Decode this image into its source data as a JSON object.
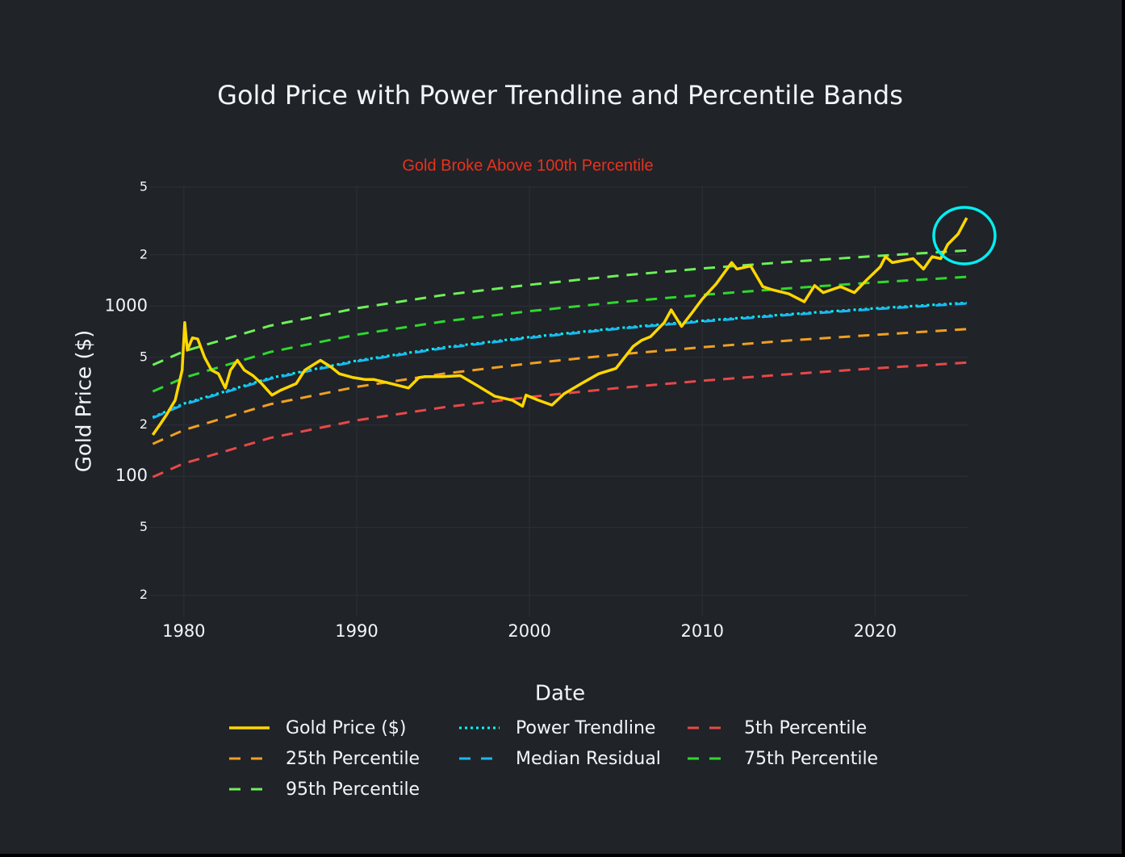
{
  "chart_data": {
    "type": "line",
    "title": "Gold Price with Power Trendline and Percentile Bands",
    "annotation": "Gold Broke Above 100th Percentile",
    "xlabel": "Date",
    "ylabel": "Gold Price ($)",
    "log_y": true,
    "grid": true,
    "xlim": [
      1978,
      2025.4
    ],
    "xticks": [
      1980,
      1990,
      2000,
      2010,
      2020
    ],
    "ylim": [
      15,
      5100
    ],
    "yticks": [
      {
        "value": 5000,
        "label": "5"
      },
      {
        "value": 2000,
        "label": "2"
      },
      1000,
      {
        "value": 500,
        "label": "5"
      },
      {
        "value": 200,
        "label": "2"
      },
      100,
      {
        "value": 50,
        "label": "5"
      },
      {
        "value": 20,
        "label": "2"
      }
    ],
    "series": [
      {
        "name": "Gold Price ($)",
        "color": "#ffd700",
        "dash": "solid",
        "x": [
          1978.2,
          1978.6,
          1979,
          1979.5,
          1979.9,
          1980.05,
          1980.2,
          1980.5,
          1980.8,
          1981.2,
          1981.6,
          1982.0,
          1982.4,
          1982.7,
          1983.1,
          1983.5,
          1984,
          1984.5,
          1985.1,
          1985.6,
          1986.5,
          1987,
          1987.9,
          1988.5,
          1989,
          1989.8,
          1990.5,
          1991,
          1992,
          1993,
          1993.6,
          1994,
          1995,
          1996,
          1997,
          1998,
          1999,
          1999.6,
          1999.8,
          2000.5,
          2001.3,
          2002,
          2003,
          2004,
          2005,
          2006,
          2006.5,
          2007,
          2007.8,
          2008.2,
          2008.8,
          2009.5,
          2010,
          2010.8,
          2011.7,
          2012,
          2012.8,
          2013.5,
          2014,
          2015,
          2015.9,
          2016.5,
          2017,
          2018,
          2018.8,
          2019.5,
          2020.3,
          2020.6,
          2021,
          2022.2,
          2022.8,
          2023.3,
          2023.8,
          2024.2,
          2024.8,
          2025.3
        ],
        "values": [
          175,
          200,
          230,
          280,
          420,
          800,
          550,
          650,
          640,
          500,
          420,
          400,
          330,
          420,
          480,
          420,
          390,
          350,
          300,
          320,
          350,
          420,
          480,
          440,
          400,
          380,
          370,
          370,
          350,
          330,
          380,
          385,
          385,
          390,
          340,
          295,
          280,
          258,
          300,
          280,
          262,
          305,
          350,
          400,
          430,
          580,
          630,
          660,
          800,
          950,
          760,
          940,
          1100,
          1350,
          1800,
          1650,
          1720,
          1300,
          1250,
          1180,
          1060,
          1320,
          1200,
          1300,
          1200,
          1420,
          1700,
          1950,
          1800,
          1900,
          1650,
          1950,
          1900,
          2300,
          2650,
          3300
        ]
      },
      {
        "name": "Power Trendline",
        "color": "#00ffff",
        "dash": "dot",
        "x": [
          1978.2,
          1980,
          1985,
          1990,
          1995,
          2000,
          2005,
          2010,
          2015,
          2020,
          2025.3
        ],
        "values": [
          222,
          267,
          378,
          478,
          571,
          657,
          740,
          819,
          895,
          969,
          1045
        ]
      },
      {
        "name": "5th Percentile",
        "color": "#e84848",
        "dash": "dash",
        "x": [
          1978.2,
          1980,
          1985,
          1990,
          1995,
          2000,
          2005,
          2010,
          2015,
          2020,
          2025.3
        ],
        "values": [
          99,
          119,
          168,
          213,
          254,
          292,
          329,
          364,
          398,
          431,
          465
        ]
      },
      {
        "name": "25th Percentile",
        "color": "#f0a020",
        "dash": "dash",
        "x": [
          1978.2,
          1980,
          1985,
          1990,
          1995,
          2000,
          2005,
          2010,
          2015,
          2020,
          2025.3
        ],
        "values": [
          155,
          187,
          265,
          335,
          400,
          460,
          518,
          573,
          627,
          678,
          732
        ]
      },
      {
        "name": "Median Residual",
        "color": "#1ab8f0",
        "dash": "dash",
        "x": [
          1978.2,
          1980,
          1985,
          1990,
          1995,
          2000,
          2005,
          2010,
          2015,
          2020,
          2025.3
        ],
        "values": [
          220,
          264,
          374,
          473,
          565,
          650,
          733,
          811,
          886,
          959,
          1035
        ]
      },
      {
        "name": "75th Percentile",
        "color": "#2ed82e",
        "dash": "dash",
        "x": [
          1978.2,
          1980,
          1985,
          1990,
          1995,
          2000,
          2005,
          2010,
          2015,
          2020,
          2025.3
        ],
        "values": [
          315,
          379,
          537,
          679,
          811,
          933,
          1051,
          1163,
          1271,
          1376,
          1484
        ]
      },
      {
        "name": "95th Percentile",
        "color": "#6ef05a",
        "dash": "dash",
        "x": [
          1978.2,
          1980,
          1985,
          1990,
          1995,
          2000,
          2005,
          2010,
          2015,
          2020,
          2025.3
        ],
        "values": [
          451,
          542,
          767,
          970,
          1159,
          1334,
          1502,
          1663,
          1817,
          1967,
          2121
        ]
      }
    ]
  }
}
